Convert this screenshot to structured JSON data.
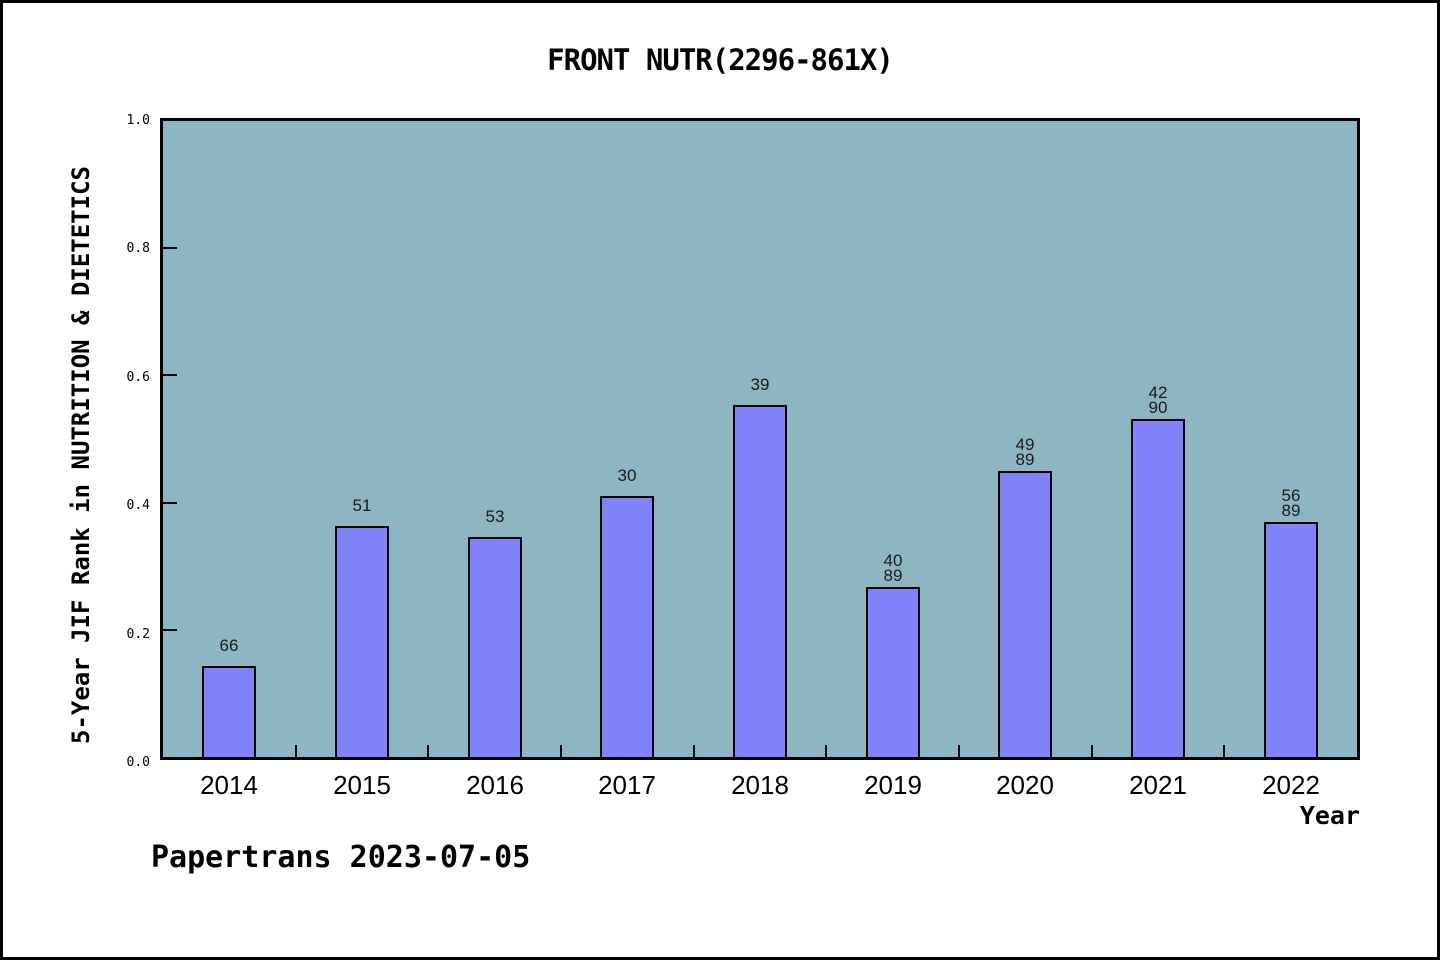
{
  "title": "FRONT NUTR(2296-861X)",
  "footer": "Papertrans 2023-07-05",
  "x_axis": {
    "label": "Year"
  },
  "y_axis": {
    "label": "5-Year JIF Rank in NUTRITION & DIETETICS"
  },
  "chart_data": {
    "type": "bar",
    "title": "FRONT NUTR(2296-861X)",
    "xlabel": "Year",
    "ylabel": "5-Year JIF Rank in NUTRITION & DIETETICS",
    "ylim": [
      0.0,
      1.0
    ],
    "y_ticks": [
      0.0,
      0.2,
      0.4,
      0.6,
      0.8,
      1.0
    ],
    "y_tick_labels": [
      "0.0",
      "0.2",
      "0.4",
      "0.6",
      "0.8",
      "1.0"
    ],
    "grid": false,
    "legend": "none",
    "categories": [
      "2014",
      "2015",
      "2016",
      "2017",
      "2018",
      "2019",
      "2020",
      "2021",
      "2022"
    ],
    "values": [
      0.143,
      0.363,
      0.346,
      0.41,
      0.553,
      0.268,
      0.449,
      0.531,
      0.369
    ],
    "bar_labels": [
      [
        "66"
      ],
      [
        "51"
      ],
      [
        "53"
      ],
      [
        "30"
      ],
      [
        "39"
      ],
      [
        "40",
        "89"
      ],
      [
        "49",
        "89"
      ],
      [
        "42",
        "90"
      ],
      [
        "56",
        "89"
      ]
    ],
    "colors": {
      "bar_fill": "#8183FA",
      "bar_edge": "#000000",
      "plot_background": "#8DB6C3",
      "page_background": "#FFFFFF",
      "frame": "#000000"
    }
  }
}
